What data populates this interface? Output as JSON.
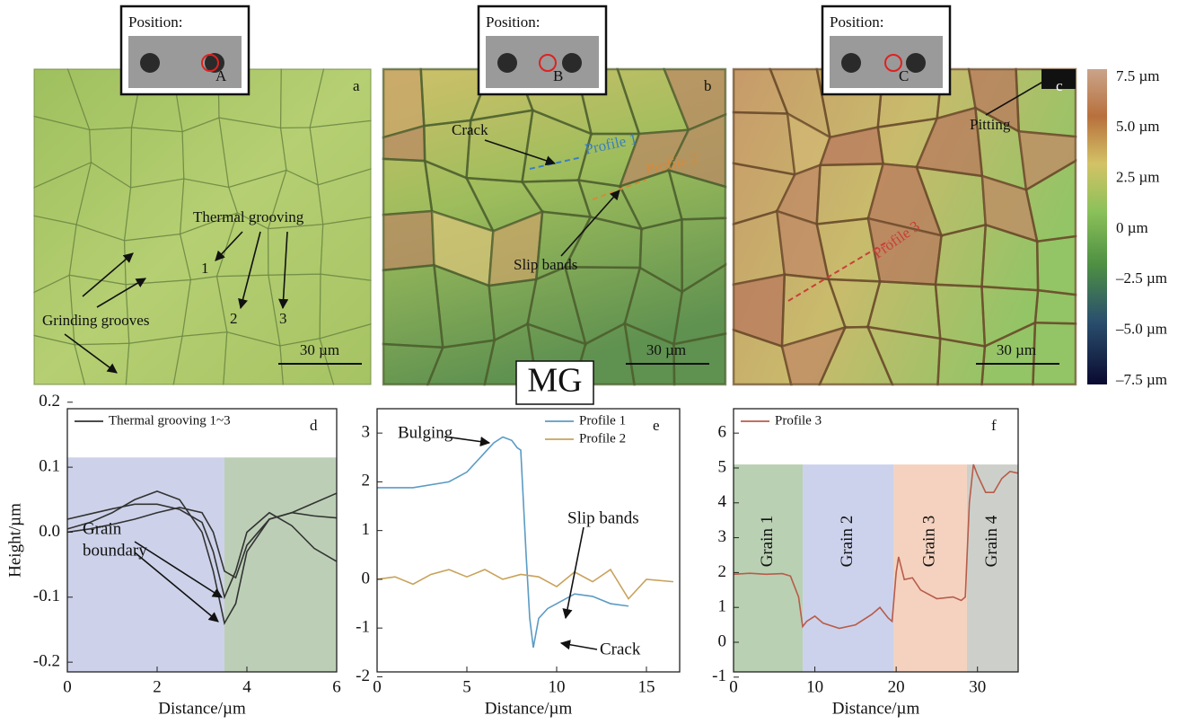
{
  "figure": {
    "label": "MG"
  },
  "panels": [
    {
      "letter": "a",
      "position_label": "Position:",
      "site": "A",
      "scale_bar": "30 µm",
      "annotations": [
        "Thermal grooving",
        "1",
        "2",
        "3",
        "Grinding grooves"
      ]
    },
    {
      "letter": "b",
      "position_label": "Position:",
      "site": "B",
      "scale_bar": "30 µm",
      "annotations": [
        "Crack",
        "Profile 1",
        "Profile 2",
        "Slip bands"
      ]
    },
    {
      "letter": "c",
      "position_label": "Position:",
      "site": "C",
      "scale_bar": "30 µm",
      "annotations": [
        "Pitting",
        "Profile 3"
      ]
    }
  ],
  "colorbar": {
    "labels": [
      "7.5 µm",
      "5.0 µm",
      "2.5 µm",
      "0 µm",
      "–2.5 µm",
      "–5.0 µm",
      "–7.5 µm"
    ]
  },
  "chart_data": [
    {
      "type": "line",
      "panel_label": "d",
      "xlabel": "Distance/µm",
      "ylabel": "Height/µm",
      "xlim": [
        0,
        6
      ],
      "xticks": [
        0,
        2,
        4,
        6
      ],
      "ylim": [
        -0.215,
        0.19
      ],
      "yticks": [
        0.2,
        0.1,
        {
          "value": 0,
          "label": "0.0"
        },
        -0.1,
        -0.2
      ],
      "legend": "upper left",
      "region_top": 0.115,
      "regions": [
        {
          "x": [
            0,
            3.5
          ],
          "color": "#cdd2ea"
        },
        {
          "x": [
            3.5,
            6
          ],
          "color": "#bccfb6"
        }
      ],
      "annotations": [
        "Grain",
        "boundary"
      ],
      "series": [
        {
          "name": "Thermal grooving 1~3",
          "color": "#333333",
          "x": [
            0,
            0.5,
            1,
            1.5,
            2,
            2.5,
            3,
            3.25,
            3.5,
            3.75,
            4,
            4.5,
            5,
            5.5,
            6
          ],
          "values": [
            0.005,
            0.015,
            0.03,
            0.05,
            0.063,
            0.05,
            0.0,
            -0.06,
            -0.14,
            -0.11,
            -0.03,
            0.02,
            0.03,
            0.045,
            0.06
          ]
        },
        {
          "color": "#333333",
          "x": [
            0,
            0.5,
            1,
            1.5,
            2,
            2.5,
            3,
            3.25,
            3.5,
            3.75,
            4,
            4.5,
            5,
            5.5,
            6
          ],
          "values": [
            0.02,
            0.028,
            0.036,
            0.043,
            0.043,
            0.035,
            0.015,
            -0.03,
            -0.1,
            -0.06,
            0.0,
            0.03,
            0.01,
            -0.025,
            -0.045
          ]
        },
        {
          "color": "#333333",
          "x": [
            0,
            0.5,
            1,
            1.5,
            2,
            2.5,
            3,
            3.25,
            3.5,
            3.75,
            4,
            4.5,
            5,
            5.5,
            6
          ],
          "values": [
            0.0,
            0.005,
            0.012,
            0.02,
            0.03,
            0.038,
            0.03,
            0.0,
            -0.06,
            -0.07,
            -0.02,
            0.02,
            0.03,
            0.025,
            0.022
          ]
        }
      ]
    },
    {
      "type": "line",
      "panel_label": "e",
      "xlabel": "Distance/µm",
      "xlim": [
        0,
        16.85
      ],
      "xticks": [
        0,
        5,
        10,
        15
      ],
      "ylim": [
        -1.9,
        3.5
      ],
      "yticks": [
        3,
        2,
        1,
        0,
        -1,
        -2
      ],
      "legend": "upper right",
      "annotations": [
        "Bulging",
        "Slip bands",
        "Crack"
      ],
      "series": [
        {
          "name": "Profile 1",
          "color": "#5b9bc4",
          "x": [
            0,
            2,
            4,
            5,
            6,
            6.5,
            7,
            7.5,
            7.8,
            8,
            8.3,
            8.5,
            8.7,
            9,
            9.5,
            10,
            11,
            12,
            13,
            14
          ],
          "values": [
            1.88,
            1.88,
            2.0,
            2.2,
            2.6,
            2.8,
            2.92,
            2.85,
            2.7,
            2.65,
            0.5,
            -0.8,
            -1.4,
            -0.8,
            -0.6,
            -0.5,
            -0.3,
            -0.35,
            -0.5,
            -0.55
          ]
        },
        {
          "name": "Profile 2",
          "color": "#c8a25a",
          "x": [
            0,
            1,
            2,
            3,
            4,
            5,
            6,
            7,
            8,
            9,
            10,
            11,
            12,
            13,
            14,
            15,
            16.5
          ],
          "values": [
            0.0,
            0.05,
            -0.1,
            0.1,
            0.2,
            0.05,
            0.2,
            0.0,
            0.1,
            0.05,
            -0.15,
            0.15,
            -0.05,
            0.2,
            -0.4,
            0.0,
            -0.05
          ]
        }
      ]
    },
    {
      "type": "line",
      "panel_label": "f",
      "xlabel": "Distance/µm",
      "xlim": [
        0,
        35
      ],
      "xticks": [
        0,
        10,
        20,
        30
      ],
      "ylim": [
        -0.85,
        6.7
      ],
      "yticks": [
        6,
        5,
        4,
        3,
        2,
        1,
        0,
        -1
      ],
      "legend": "upper left",
      "region_top": 5.1,
      "regions": [
        {
          "label": "Grain 1",
          "x": [
            0,
            8.5
          ],
          "color": "#b9d0b3"
        },
        {
          "label": "Grain 2",
          "x": [
            8.5,
            19.7
          ],
          "color": "#ccd2ec"
        },
        {
          "label": "Grain 3",
          "x": [
            19.7,
            28.7
          ],
          "color": "#f5d2bf"
        },
        {
          "label": "Grain 4",
          "x": [
            28.7,
            35
          ],
          "color": "#cdd0ca"
        }
      ],
      "series": [
        {
          "name": "Profile 3",
          "color": "#b85c4a",
          "x": [
            0,
            2,
            4,
            6,
            7,
            8,
            8.5,
            9,
            10,
            11,
            13,
            15,
            17,
            18,
            19,
            19.5,
            20,
            20.3,
            21,
            22,
            23,
            25,
            27,
            28,
            28.5,
            29,
            29.5,
            30,
            31,
            32,
            33,
            34,
            35
          ],
          "values": [
            1.95,
            1.98,
            1.95,
            1.97,
            1.9,
            1.3,
            0.45,
            0.6,
            0.75,
            0.55,
            0.4,
            0.5,
            0.8,
            1.0,
            0.7,
            0.6,
            2.0,
            2.45,
            1.8,
            1.85,
            1.5,
            1.25,
            1.3,
            1.2,
            1.3,
            4.0,
            5.1,
            4.8,
            4.3,
            4.3,
            4.7,
            4.9,
            4.85
          ]
        }
      ]
    }
  ]
}
